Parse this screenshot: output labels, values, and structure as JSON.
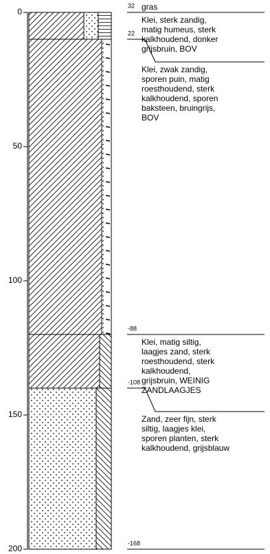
{
  "axis": {
    "range": [
      0,
      200
    ],
    "ticks": [
      0,
      50,
      100,
      150,
      200
    ]
  },
  "surface": {
    "level": 32,
    "label": "gras"
  },
  "layers": [
    {
      "top": 0,
      "bottom": 10,
      "bottom_level": 22,
      "description": [
        "Klei, sterk zandig,",
        "matig humeus, sterk",
        "kalkhoudend, donker",
        "grijsbruin, BOV"
      ]
    },
    {
      "top": 10,
      "bottom": 120,
      "bottom_level": -88,
      "description": [
        "Klei, zwak zandig,",
        "sporen puin, matig",
        "roesthoudend, sterk",
        "kalkhoudend, sporen",
        "baksteen, bruingrijs,",
        "BOV"
      ]
    },
    {
      "top": 120,
      "bottom": 140,
      "bottom_level": -108,
      "description": [
        "Klei, matig siltig,",
        "laagjes zand, sterk",
        "roesthoudend, sterk",
        "kalkhoudend,",
        "grijsbruin, WEINIG",
        "ZANDLAAGJES"
      ]
    },
    {
      "top": 140,
      "bottom": 200,
      "bottom_level": -168,
      "description": [
        "Zand, zeer fijn, sterk",
        "siltig, laagjes klei,",
        "sporen planten, sterk",
        "kalkhoudend, grijsblauw"
      ]
    }
  ]
}
